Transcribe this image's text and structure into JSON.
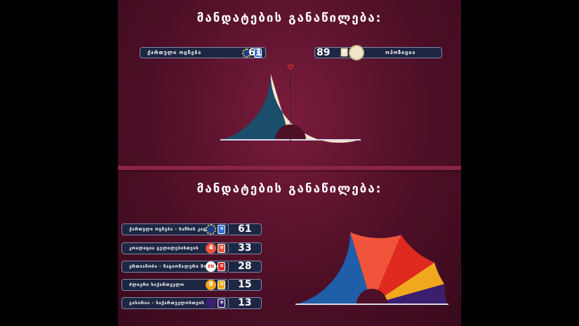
{
  "top": {
    "title": "მანდატების განაწილება:",
    "left": {
      "label": "ქართული ოცნება",
      "seats": "61",
      "color": "#1b4e6b",
      "person_color": "#2f6fd6"
    },
    "right": {
      "label": "ოპოზიცია",
      "seats": "89",
      "color": "#f2e6cc"
    },
    "majority_marker_color": "#e0302e",
    "chart_data": {
      "type": "pie",
      "subtype": "half-donut",
      "series": [
        {
          "name": "ქართული ოცნება",
          "value": 61,
          "color": "#1b4e6b"
        },
        {
          "name": "ოპოზიცია",
          "value": 89,
          "color": "#f2e6cc"
        }
      ]
    }
  },
  "bottom": {
    "title": "მანდატების განაწილება:",
    "rows": [
      {
        "label": "ქართული ოცნება - სამხის კადი",
        "seats": "61",
        "icon": "georgian-dream-logo",
        "color": "#2f6fd6",
        "icon_text": ""
      },
      {
        "label": "კოალიცია ცვლილებისთვის",
        "seats": "33",
        "icon": "number-4-logo",
        "color": "#f0553b",
        "icon_text": "4"
      },
      {
        "label": "ერთიანობა - ნაციონალური მოძრაობა",
        "seats": "28",
        "icon": "unm-logo",
        "color": "#e02a1f",
        "icon_text": "EN"
      },
      {
        "label": "ძლიერი საქართველო",
        "seats": "15",
        "icon": "strong-georgia-logo",
        "color": "#f2a81d",
        "icon_text": "9"
      },
      {
        "label": "გახარია - საქართველოსთვის",
        "seats": "13",
        "icon": "gakharia-logo",
        "color": "#3b1f6e",
        "icon_text": ""
      }
    ],
    "chart_data": {
      "type": "pie",
      "subtype": "half-donut",
      "series": [
        {
          "name": "ქართული ოცნება - სამხის კადი",
          "value": 61,
          "color": "#1f5ea8"
        },
        {
          "name": "კოალიცია ცვლილებისთვის",
          "value": 33,
          "color": "#f0553b"
        },
        {
          "name": "ერთიანობა - ნაციონალური მოძრაობა",
          "value": 28,
          "color": "#e02a1f"
        },
        {
          "name": "ძლიერი საქართველო",
          "value": 15,
          "color": "#f2a81d"
        },
        {
          "name": "გახარია - საქართველოსთვის",
          "value": 13,
          "color": "#3b1f6e"
        }
      ]
    }
  }
}
